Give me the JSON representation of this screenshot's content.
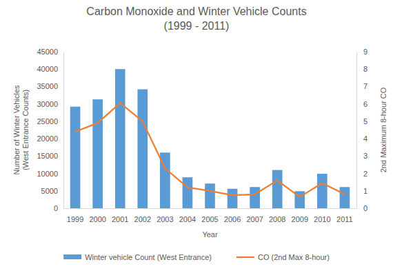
{
  "chart_data": {
    "type": "bar",
    "title": "Carbon Monoxide and Winter Vehicle Counts\n(1999 - 2011)",
    "x_label": "Year",
    "y_label": "Number of Winter Vehicles\n(West Entrance Counts)",
    "y2_label": "2nd Maximum 8-hour CO",
    "categories": [
      "1999",
      "2000",
      "2001",
      "2002",
      "2003",
      "2004",
      "2005",
      "2006",
      "2007",
      "2008",
      "2009",
      "2010",
      "2011"
    ],
    "series": [
      {
        "name": "Winter vehicle Count (West Entrance)",
        "type": "bar",
        "color": "#5b9bd5",
        "values": [
          29200,
          31300,
          40000,
          34200,
          16000,
          8900,
          7100,
          5600,
          6100,
          11000,
          4900,
          9900,
          6100
        ]
      },
      {
        "name": "CO (2nd Max 8-hour)",
        "type": "line",
        "axis": "y2",
        "color": "#ed7d31",
        "values": [
          4.4,
          4.9,
          6.05,
          5.0,
          2.3,
          1.2,
          1.0,
          0.75,
          0.8,
          1.6,
          0.65,
          1.45,
          0.8
        ]
      }
    ],
    "ylim": [
      0,
      45000
    ],
    "yticks": [
      0,
      5000,
      10000,
      15000,
      20000,
      25000,
      30000,
      35000,
      40000,
      45000
    ],
    "y2lim": [
      0,
      9
    ],
    "y2ticks": [
      0,
      1,
      2,
      3,
      4,
      5,
      6,
      7,
      8,
      9
    ],
    "grid": false,
    "legend": "bottom"
  }
}
